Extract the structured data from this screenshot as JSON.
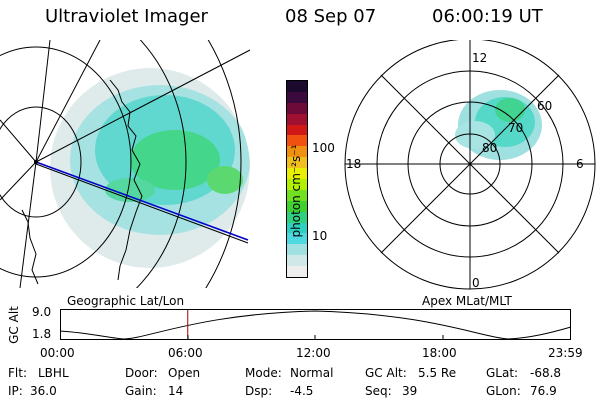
{
  "header": {
    "instrument": "Ultraviolet Imager",
    "date": "08 Sep 07",
    "time": "06:00:19 UT"
  },
  "colorbar": {
    "unit_label": "photon cm⁻²s⁻¹",
    "ticks": [
      "100",
      "10"
    ],
    "colors": [
      "#1b0a2e",
      "#3b0a3d",
      "#6e0a3a",
      "#a01030",
      "#d01818",
      "#f05010",
      "#f09010",
      "#f0c020",
      "#e8f000",
      "#b0f000",
      "#70e020",
      "#40d030",
      "#30d080",
      "#30d0c0",
      "#50d8e0",
      "#a0e0e0",
      "#d0e8e8",
      "#eeeeee"
    ]
  },
  "left_panel": {
    "caption": "Geographic Lat/Lon"
  },
  "right_panel": {
    "caption": "Apex MLat/MLT",
    "mlt_labels": {
      "top": "12",
      "bottom": "0",
      "left": "18",
      "right": "6"
    },
    "mlat_labels": [
      "60",
      "70",
      "80"
    ]
  },
  "altitude_plot": {
    "ylabel": "GC Alt",
    "yticks": [
      "9.0",
      "1.8"
    ],
    "xticks": [
      "00:00",
      "06:00",
      "12:00",
      "18:00",
      "23:59"
    ],
    "current_time_fraction": 0.25
  },
  "footer": {
    "row1": {
      "flt_label": "Flt:",
      "flt_value": "LBHL",
      "door_label": "Door:",
      "door_value": "Open",
      "mode_label": "Mode:",
      "mode_value": "Normal",
      "gcalt_label": "GC Alt:",
      "gcalt_value": "5.5 Re",
      "glat_label": "GLat:",
      "glat_value": "-68.8"
    },
    "row2": {
      "ip_label": "IP:",
      "ip_value": "36.0",
      "gain_label": "Gain:",
      "gain_value": "14",
      "dsp_label": "Dsp:",
      "dsp_value": "-4.5",
      "seq_label": "Seq:",
      "seq_value": "39",
      "glon_label": "GLon:",
      "glon_value": "76.9"
    }
  }
}
